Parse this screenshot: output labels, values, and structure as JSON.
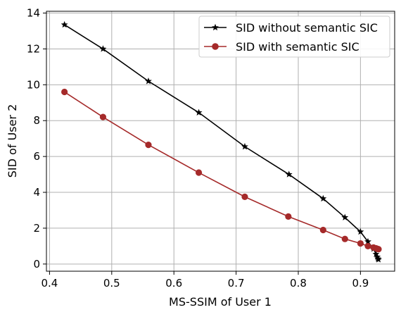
{
  "chart_data": {
    "type": "line",
    "title": "",
    "xlabel": "MS-SSIM of User 1",
    "ylabel": "SID of User 2",
    "xlim": [
      0.395,
      0.955
    ],
    "ylim": [
      -0.4,
      14.1
    ],
    "xticks": [
      0.4,
      0.5,
      0.6,
      0.7,
      0.8,
      0.9
    ],
    "xtick_labels": [
      "0.4",
      "0.5",
      "0.6",
      "0.7",
      "0.8",
      "0.9"
    ],
    "yticks": [
      0,
      2,
      4,
      6,
      8,
      10,
      12,
      14
    ],
    "ytick_labels": [
      "0",
      "2",
      "4",
      "6",
      "8",
      "10",
      "12",
      "14"
    ],
    "grid": true,
    "legend_position": "top-right",
    "series": [
      {
        "name": "SID without semantic SIC",
        "color": "#000000",
        "marker": "star",
        "x": [
          0.424,
          0.486,
          0.559,
          0.64,
          0.714,
          0.785,
          0.84,
          0.875,
          0.9,
          0.912,
          0.921,
          0.925,
          0.927,
          0.928,
          0.929
        ],
        "y": [
          13.35,
          12.0,
          10.2,
          8.45,
          6.55,
          5.0,
          3.65,
          2.6,
          1.8,
          1.25,
          0.85,
          0.55,
          0.4,
          0.3,
          0.25
        ]
      },
      {
        "name": "SID with semantic SIC",
        "color": "#a52a2a",
        "marker": "circle",
        "x": [
          0.424,
          0.486,
          0.559,
          0.64,
          0.714,
          0.784,
          0.84,
          0.875,
          0.9,
          0.912,
          0.921,
          0.925,
          0.927,
          0.929
        ],
        "y": [
          9.6,
          8.2,
          6.65,
          5.1,
          3.75,
          2.65,
          1.9,
          1.4,
          1.15,
          1.0,
          0.92,
          0.88,
          0.85,
          0.83
        ]
      }
    ]
  }
}
